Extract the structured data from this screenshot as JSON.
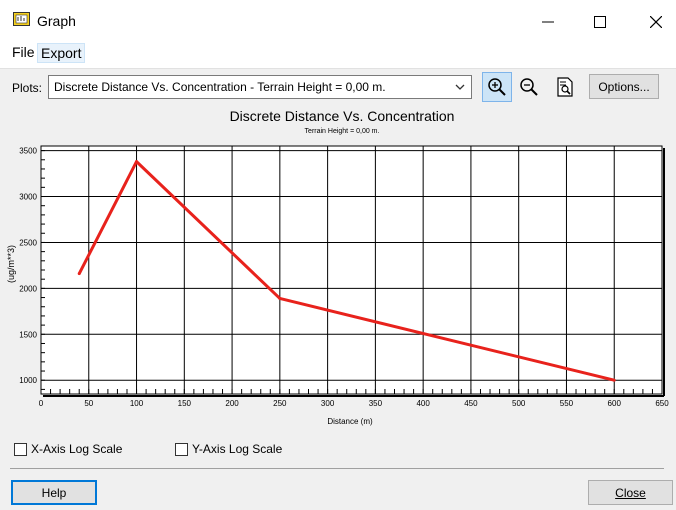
{
  "window": {
    "title": "Graph"
  },
  "menu": {
    "file": "File",
    "export": "Export"
  },
  "toolbar": {
    "plots_label": "Plots:",
    "plots_value": "Discrete Distance Vs. Concentration - Terrain Height = 0,00 m.",
    "options_label": "Options..."
  },
  "chart_data": {
    "type": "line",
    "title": "Discrete Distance Vs. Concentration",
    "subtitle": "Terrain Height = 0,00 m.",
    "xlabel": "Distance (m)",
    "ylabel": "(ug/m**3)",
    "xlim": [
      0,
      650
    ],
    "ylim": [
      850,
      3550
    ],
    "x_ticks": [
      "0",
      "50",
      "100",
      "150",
      "200",
      "250",
      "300",
      "350",
      "400",
      "450",
      "500",
      "550",
      "600",
      "650"
    ],
    "y_ticks": [
      "1000",
      "1500",
      "2000",
      "2500",
      "3000",
      "3500"
    ],
    "grid": true,
    "series": [
      {
        "x": [
          40,
          100,
          250,
          600
        ],
        "y": [
          2160,
          3380,
          1890,
          1000
        ]
      }
    ],
    "line_color": "#e8221c"
  },
  "options": {
    "x_log_label": "X-Axis Log Scale",
    "y_log_label": "Y-Axis Log Scale"
  },
  "footer": {
    "help_label": "Help",
    "close_label": "Close"
  }
}
